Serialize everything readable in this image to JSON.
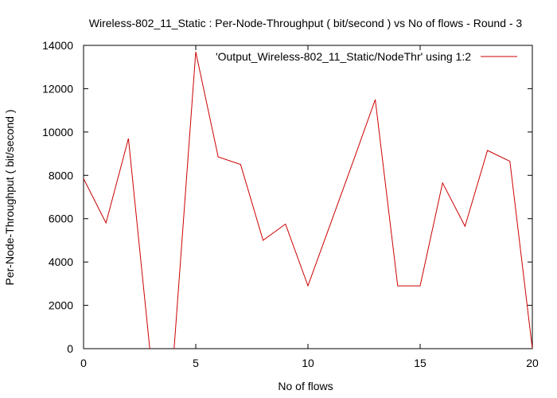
{
  "chart_data": {
    "type": "line",
    "title": "Wireless-802_11_Static : Per-Node-Throughput ( bit/second ) vs No of flows - Round - 3",
    "xlabel": "No of flows",
    "ylabel": "Per-Node-Throughput ( bit/second )",
    "xlim": [
      0,
      20
    ],
    "ylim": [
      0,
      14000
    ],
    "xticks": [
      0,
      5,
      10,
      15,
      20
    ],
    "yticks": [
      0,
      2000,
      4000,
      6000,
      8000,
      10000,
      12000,
      14000
    ],
    "grid": false,
    "legend_position": "top-right",
    "series": [
      {
        "name": "'Output_Wireless-802_11_Static/NodeThr' using 1:2",
        "color": "#cc0000",
        "x": [
          0,
          1,
          2,
          3,
          4,
          5,
          6,
          7,
          8,
          9,
          10,
          11,
          12,
          13,
          14,
          15,
          16,
          17,
          18,
          19,
          20
        ],
        "y": [
          7850,
          5800,
          9700,
          -500,
          -500,
          13700,
          8850,
          8500,
          5000,
          5750,
          2900,
          5750,
          8600,
          11500,
          2900,
          2900,
          7650,
          5650,
          9150,
          8650,
          0
        ]
      }
    ]
  }
}
